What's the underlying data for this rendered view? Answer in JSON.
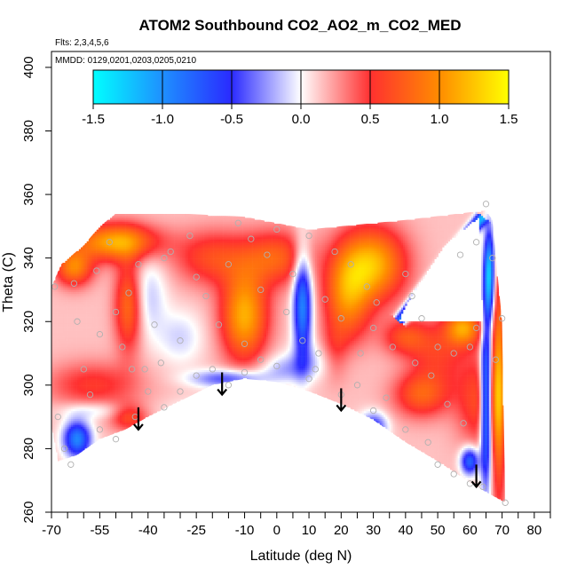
{
  "chart_data": {
    "type": "heatmap",
    "title": "ATOM2 Southbound CO2_AO2_m_CO2_MED",
    "subtitle_lines": [
      "Flts: 2,3,4,5,6",
      "MMDD: 0129,0201,0203,0205,0210"
    ],
    "xlabel": "Latitude (deg N)",
    "ylabel": "Theta (C)",
    "xlim": [
      -70,
      85
    ],
    "ylim": [
      260,
      405
    ],
    "x_ticks": [
      -70,
      -55,
      -40,
      -25,
      -10,
      0,
      10,
      20,
      30,
      40,
      50,
      60,
      70,
      80
    ],
    "x_minor_ticks": [
      -65,
      -60,
      -50,
      -45,
      -35,
      -30,
      -20,
      -15,
      -5,
      5,
      15,
      25,
      35,
      45,
      55,
      65,
      75,
      85
    ],
    "y_ticks": [
      260,
      280,
      300,
      320,
      340,
      360,
      380,
      400
    ],
    "grid": false,
    "colorbar": {
      "placement": "top",
      "range": [
        -1.5,
        1.5
      ],
      "tick_values": [
        -1.5,
        -1.0,
        -0.5,
        0.0,
        0.5,
        1.0,
        1.5
      ],
      "tick_labels": [
        "-1.5",
        "-1.0",
        "-0.5",
        "0.0",
        "0.5",
        "1.0",
        "1.5"
      ],
      "stops": [
        {
          "value": -1.5,
          "color": "#00ffff"
        },
        {
          "value": -1.0,
          "color": "#1e90ff"
        },
        {
          "value": -0.5,
          "color": "#2a2aff"
        },
        {
          "value": 0.0,
          "color": "#ffffff"
        },
        {
          "value": 0.5,
          "color": "#ff3030"
        },
        {
          "value": 1.0,
          "color": "#ff8c00"
        },
        {
          "value": 1.5,
          "color": "#ffff00"
        }
      ]
    },
    "domain_outline": [
      [
        -70,
        331
      ],
      [
        -67,
        338
      ],
      [
        -60,
        344
      ],
      [
        -55,
        350
      ],
      [
        -50,
        354
      ],
      [
        -30,
        354
      ],
      [
        -10,
        353
      ],
      [
        10,
        349
      ],
      [
        40,
        352
      ],
      [
        65,
        355
      ],
      [
        67,
        352
      ],
      [
        70,
        320
      ],
      [
        71,
        263
      ],
      [
        62,
        268
      ],
      [
        50,
        276
      ],
      [
        40,
        282
      ],
      [
        30,
        289
      ],
      [
        20,
        294
      ],
      [
        10,
        298
      ],
      [
        0,
        301
      ],
      [
        -10,
        302
      ],
      [
        -20,
        300
      ],
      [
        -30,
        295
      ],
      [
        -40,
        290
      ],
      [
        -47,
        286
      ],
      [
        -55,
        283
      ],
      [
        -62,
        278
      ],
      [
        -68,
        276
      ],
      [
        -70,
        287
      ]
    ],
    "blank_region": [
      [
        52,
        344
      ],
      [
        63,
        353
      ],
      [
        64,
        320
      ],
      [
        38,
        320
      ],
      [
        40,
        325
      ]
    ],
    "background_value": 0.15,
    "anomalies": [
      {
        "x": -50,
        "y": 345,
        "sx": 9,
        "sy": 4,
        "v": 1.0
      },
      {
        "x": -63,
        "y": 337,
        "sx": 4,
        "sy": 4,
        "v": 0.8
      },
      {
        "x": -57,
        "y": 300,
        "sx": 10,
        "sy": 5,
        "v": 0.4
      },
      {
        "x": -46,
        "y": 325,
        "sx": 3,
        "sy": 10,
        "v": 0.7
      },
      {
        "x": -40,
        "y": 328,
        "sx": 4,
        "sy": 9,
        "v": -0.3
      },
      {
        "x": -30,
        "y": 315,
        "sx": 5,
        "sy": 6,
        "v": -0.25
      },
      {
        "x": -62,
        "y": 283,
        "sx": 3,
        "sy": 4,
        "v": -1.1
      },
      {
        "x": -56,
        "y": 292,
        "sx": 8,
        "sy": 2,
        "v": -0.25
      },
      {
        "x": -46,
        "y": 290,
        "sx": 4,
        "sy": 3,
        "v": 0.5
      },
      {
        "x": -25,
        "y": 292,
        "sx": 7,
        "sy": 3,
        "v": -0.15
      },
      {
        "x": -15,
        "y": 302,
        "sx": 8,
        "sy": 2,
        "v": -0.6
      },
      {
        "x": -10,
        "y": 322,
        "sx": 5,
        "sy": 10,
        "v": 1.0
      },
      {
        "x": -20,
        "y": 340,
        "sx": 8,
        "sy": 6,
        "v": 0.5
      },
      {
        "x": 0,
        "y": 340,
        "sx": 7,
        "sy": 6,
        "v": 0.6
      },
      {
        "x": 8,
        "y": 325,
        "sx": 2,
        "sy": 12,
        "v": -1.1
      },
      {
        "x": 12,
        "y": 308,
        "sx": 7,
        "sy": 4,
        "v": -0.2
      },
      {
        "x": 3,
        "y": 305,
        "sx": 6,
        "sy": 3,
        "v": -0.3
      },
      {
        "x": 18,
        "y": 310,
        "sx": 3,
        "sy": 6,
        "v": 0.3
      },
      {
        "x": 22,
        "y": 328,
        "sx": 5,
        "sy": 10,
        "v": 0.8
      },
      {
        "x": 30,
        "y": 338,
        "sx": 7,
        "sy": 8,
        "v": 1.0
      },
      {
        "x": 40,
        "y": 315,
        "sx": 5,
        "sy": 4,
        "v": 0.5
      },
      {
        "x": 30,
        "y": 287,
        "sx": 3,
        "sy": 3,
        "v": -0.7
      },
      {
        "x": 45,
        "y": 297,
        "sx": 6,
        "sy": 5,
        "v": 0.6
      },
      {
        "x": 50,
        "y": 310,
        "sx": 6,
        "sy": 7,
        "v": 0.4
      },
      {
        "x": 58,
        "y": 318,
        "sx": 4,
        "sy": 4,
        "v": 0.9
      },
      {
        "x": 63,
        "y": 295,
        "sx": 5,
        "sy": 10,
        "v": 0.5
      },
      {
        "x": 65,
        "y": 295,
        "sx": 1.2,
        "sy": 18,
        "v": -1.4
      },
      {
        "x": 66,
        "y": 335,
        "sx": 1.2,
        "sy": 10,
        "v": -1.4
      },
      {
        "x": 60,
        "y": 276,
        "sx": 2,
        "sy": 3,
        "v": -1.0
      },
      {
        "x": 69,
        "y": 300,
        "sx": 1.5,
        "sy": 25,
        "v": 0.9
      }
    ],
    "blue_band": [
      [
        38,
        320
      ],
      [
        64,
        353
      ]
    ],
    "flight_points": [
      [
        -69,
        331
      ],
      [
        -63,
        332
      ],
      [
        -62,
        320
      ],
      [
        -60,
        305
      ],
      [
        -56,
        336
      ],
      [
        -55,
        316
      ],
      [
        -52,
        345
      ],
      [
        -50,
        323
      ],
      [
        -48,
        312
      ],
      [
        -46,
        329
      ],
      [
        -45,
        305
      ],
      [
        -43,
        338
      ],
      [
        -38,
        319
      ],
      [
        -36,
        307
      ],
      [
        -33,
        342
      ],
      [
        -30,
        314
      ],
      [
        -27,
        347
      ],
      [
        -25,
        334
      ],
      [
        -22,
        328
      ],
      [
        -18,
        319
      ],
      [
        -15,
        338
      ],
      [
        -12,
        351
      ],
      [
        -10,
        313
      ],
      [
        -8,
        346
      ],
      [
        -5,
        308
      ],
      [
        -3,
        341
      ],
      [
        0,
        349
      ],
      [
        3,
        323
      ],
      [
        5,
        335
      ],
      [
        8,
        314
      ],
      [
        10,
        347
      ],
      [
        13,
        310
      ],
      [
        15,
        327
      ],
      [
        18,
        342
      ],
      [
        20,
        321
      ],
      [
        23,
        338
      ],
      [
        26,
        310
      ],
      [
        28,
        331
      ],
      [
        31,
        326
      ],
      [
        34,
        296
      ],
      [
        36,
        312
      ],
      [
        40,
        335
      ],
      [
        43,
        307
      ],
      [
        45,
        321
      ],
      [
        48,
        303
      ],
      [
        50,
        312
      ],
      [
        53,
        294
      ],
      [
        55,
        310
      ],
      [
        58,
        288
      ],
      [
        60,
        312
      ],
      [
        62,
        318
      ],
      [
        65,
        357
      ],
      [
        68,
        308
      ],
      [
        70,
        321
      ],
      [
        71,
        263
      ],
      [
        -68,
        290
      ],
      [
        -66,
        280
      ],
      [
        -64,
        275
      ],
      [
        -58,
        297
      ],
      [
        -55,
        286
      ],
      [
        -50,
        283
      ],
      [
        -44,
        290
      ],
      [
        -40,
        298
      ],
      [
        -35,
        293
      ],
      [
        -30,
        298
      ],
      [
        -25,
        303
      ],
      [
        -20,
        305
      ],
      [
        -10,
        304
      ],
      [
        0,
        306
      ],
      [
        10,
        302
      ],
      [
        20,
        297
      ],
      [
        30,
        292
      ],
      [
        40,
        286
      ],
      [
        47,
        282
      ],
      [
        50,
        275
      ],
      [
        55,
        272
      ],
      [
        60,
        269
      ],
      [
        64,
        268
      ],
      [
        30,
        318
      ],
      [
        42,
        328
      ],
      [
        57,
        341
      ],
      [
        62,
        345
      ],
      [
        67,
        340
      ],
      [
        -35,
        340
      ],
      [
        -41,
        305
      ],
      [
        12,
        305
      ],
      [
        25,
        300
      ],
      [
        -5,
        330
      ],
      [
        -15,
        300
      ]
    ],
    "arrows": [
      {
        "x": -43,
        "y_top": 293,
        "y_bottom": 286
      },
      {
        "x": -17,
        "y_top": 304,
        "y_bottom": 297
      },
      {
        "x": 20,
        "y_top": 299,
        "y_bottom": 292
      },
      {
        "x": 62,
        "y_top": 275,
        "y_bottom": 268
      }
    ]
  }
}
